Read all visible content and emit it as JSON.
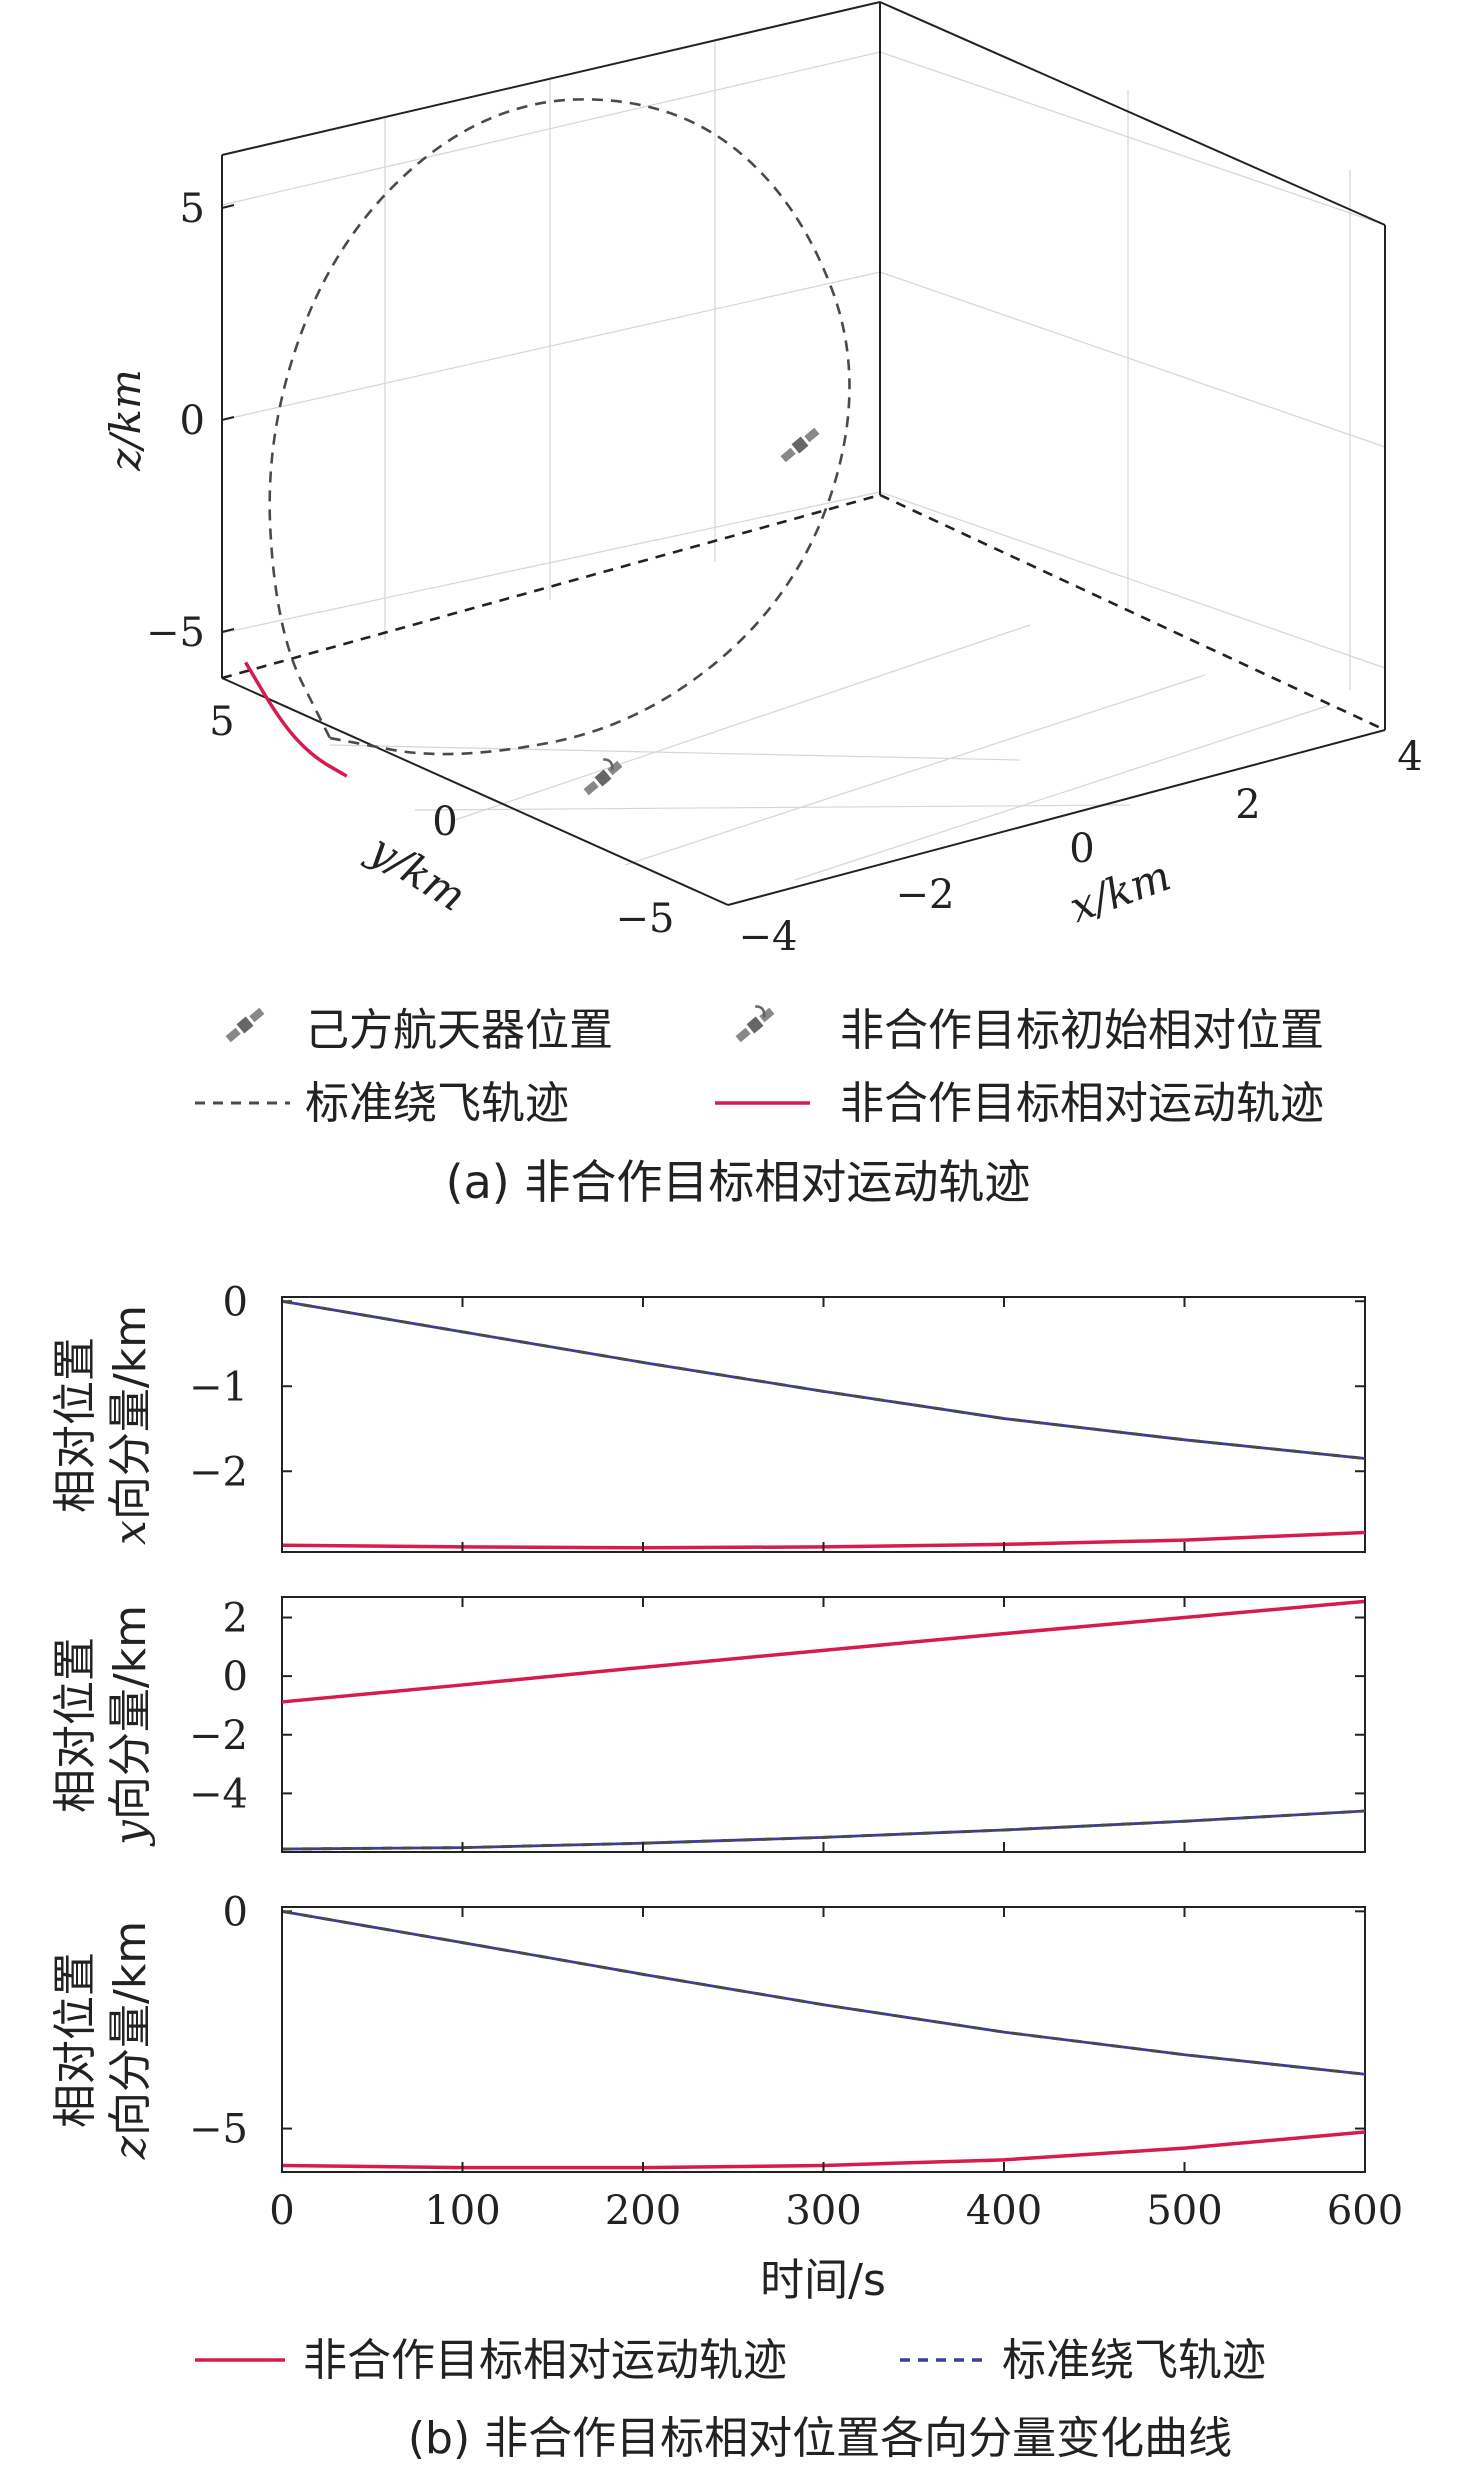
{
  "colors": {
    "target": "#d81b4f",
    "standard": "#4a4a4a",
    "standard_alt": "#3c3c9a",
    "axis": "#222222"
  },
  "chart_data": [
    {
      "type": "line",
      "subtype": "3d",
      "caption": "(a) 非合作目标相对运动轨迹",
      "xlabel": "x/km",
      "ylabel": "y/km",
      "zlabel": "z/km",
      "xlim": [
        -4,
        4
      ],
      "ylim": [
        -5,
        5
      ],
      "zlim": [
        -5,
        5
      ],
      "xticks": [
        "−4",
        "−2",
        "0",
        "2",
        "4"
      ],
      "yticks": [
        "−5",
        "0",
        "5"
      ],
      "zticks": [
        "−5",
        "0",
        "5"
      ],
      "legend": [
        {
          "label": "己方航天器位置",
          "marker": "satellite-icon"
        },
        {
          "label": "非合作目标初始相对位置",
          "marker": "satellite-signal-icon"
        },
        {
          "label": "标准绕飞轨迹",
          "style": "dashed"
        },
        {
          "label": "非合作目标相对运动轨迹",
          "style": "solid"
        }
      ],
      "series": [
        {
          "name": "标准绕飞轨迹",
          "style": "dashed",
          "description": "closed fly-around ellipse",
          "x": [
            -2.72,
            -2.0,
            -0.5,
            1.2,
            2.6,
            3.0,
            2.5,
            1.0,
            -0.8,
            -2.3,
            -2.9,
            -2.72
          ],
          "y": [
            0.0,
            -1.9,
            -4.0,
            -4.6,
            -3.0,
            0.0,
            2.5,
            4.2,
            4.4,
            3.0,
            1.2,
            0.0
          ],
          "z": [
            -5.5,
            -5.4,
            -4.2,
            -1.5,
            1.8,
            4.2,
            5.5,
            5.4,
            3.2,
            0.0,
            -3.5,
            -5.5
          ]
        },
        {
          "name": "非合作目标相对运动轨迹",
          "style": "solid",
          "x": [
            -2.87,
            -2.89,
            -2.82,
            -2.72
          ],
          "y": [
            -0.88,
            0.1,
            1.2,
            2.55
          ],
          "z": [
            -5.85,
            -5.9,
            -5.75,
            -5.08
          ]
        }
      ],
      "markers": [
        {
          "name": "己方航天器位置",
          "x": 0,
          "y": 0,
          "z": 0
        },
        {
          "name": "非合作目标初始相对位置",
          "x": -2.87,
          "y": -0.88,
          "z": -5.85
        }
      ]
    },
    {
      "type": "line",
      "caption": "(b) 非合作目标相对位置各向分量变化曲线",
      "xlabel": "时间/s",
      "xlim": [
        0,
        600
      ],
      "xticks": [
        "0",
        "100",
        "200",
        "300",
        "400",
        "500",
        "600"
      ],
      "legend": [
        {
          "label": "非合作目标相对运动轨迹",
          "style": "solid"
        },
        {
          "label": "标准绕飞轨迹",
          "style": "dashed"
        }
      ],
      "panels": [
        {
          "ylabel_line1": "相对位置",
          "ylabel_line2_var": "x",
          "ylabel_line2_rest": "向分量/km",
          "ylim": [
            -2.95,
            0.05
          ],
          "yticks": [
            {
              "label": "0",
              "value": 0
            },
            {
              "label": "−1",
              "value": -1
            },
            {
              "label": "−2",
              "value": -2
            }
          ],
          "series": [
            {
              "name": "非合作目标相对运动轨迹",
              "x": [
                0,
                100,
                200,
                300,
                400,
                500,
                600
              ],
              "y": [
                -2.87,
                -2.89,
                -2.9,
                -2.89,
                -2.86,
                -2.81,
                -2.72
              ]
            },
            {
              "name": "标准绕飞轨迹",
              "x": [
                0,
                100,
                200,
                300,
                400,
                500,
                600
              ],
              "y": [
                0.0,
                -0.36,
                -0.72,
                -1.06,
                -1.38,
                -1.63,
                -1.85
              ]
            }
          ]
        },
        {
          "ylabel_line1": "相对位置",
          "ylabel_line2_var": "y",
          "ylabel_line2_rest": "向分量/km",
          "ylim": [
            -6.0,
            2.7
          ],
          "yticks": [
            {
              "label": "2",
              "value": 2
            },
            {
              "label": "0",
              "value": 0
            },
            {
              "label": "−2",
              "value": -2
            },
            {
              "label": "−4",
              "value": -4
            }
          ],
          "series": [
            {
              "name": "非合作目标相对运动轨迹",
              "x": [
                0,
                100,
                200,
                300,
                400,
                500,
                600
              ],
              "y": [
                -0.88,
                -0.3,
                0.3,
                0.88,
                1.45,
                2.0,
                2.55
              ]
            },
            {
              "name": "标准绕飞轨迹",
              "x": [
                0,
                100,
                200,
                300,
                400,
                500,
                600
              ],
              "y": [
                -5.9,
                -5.85,
                -5.7,
                -5.5,
                -5.25,
                -4.95,
                -4.6
              ]
            }
          ]
        },
        {
          "ylabel_line1": "相对位置",
          "ylabel_line2_var": "z",
          "ylabel_line2_rest": "向分量/km",
          "ylim": [
            -6.0,
            0.1
          ],
          "yticks": [
            {
              "label": "0",
              "value": 0
            },
            {
              "label": "−5",
              "value": -5
            }
          ],
          "series": [
            {
              "name": "非合作目标相对运动轨迹",
              "x": [
                0,
                100,
                200,
                300,
                400,
                500,
                600
              ],
              "y": [
                -5.85,
                -5.9,
                -5.9,
                -5.85,
                -5.72,
                -5.45,
                -5.08
              ]
            },
            {
              "name": "标准绕飞轨迹",
              "x": [
                0,
                100,
                200,
                300,
                400,
                500,
                600
              ],
              "y": [
                0.0,
                -0.72,
                -1.45,
                -2.15,
                -2.78,
                -3.3,
                -3.75
              ]
            }
          ]
        }
      ]
    }
  ]
}
